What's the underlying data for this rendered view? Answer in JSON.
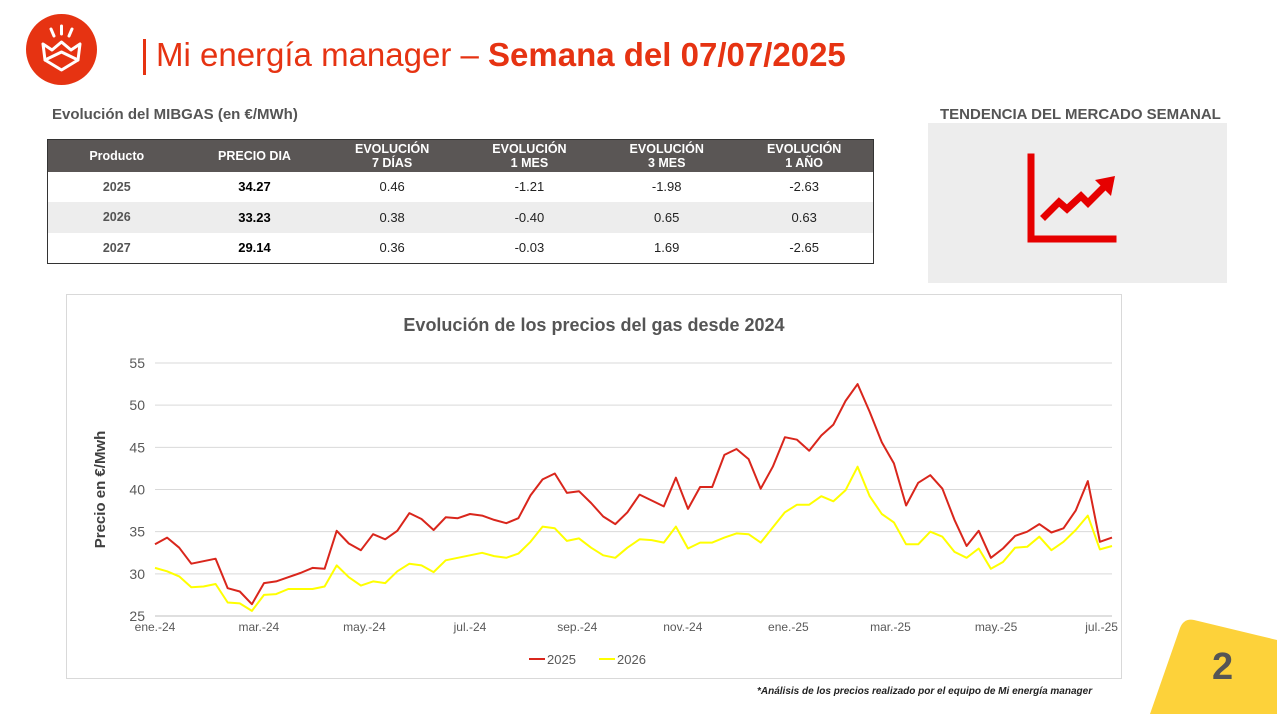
{
  "header": {
    "title_light": "Mi energía manager",
    "title_dash": "–",
    "title_bold": "Semana del 07/07/2025"
  },
  "table": {
    "title": "Evolución del MIBGAS (en €/MWh)",
    "headers": [
      [
        "Producto"
      ],
      [
        "PRECIO DIA"
      ],
      [
        "EVOLUCIÓN",
        "7 DÍAS"
      ],
      [
        "EVOLUCIÓN",
        "1 MES"
      ],
      [
        "EVOLUCIÓN",
        "3 MES"
      ],
      [
        "EVOLUCIÓN",
        "1 AÑO"
      ]
    ],
    "rows": [
      [
        "2025",
        "34.27",
        "0.46",
        "-1.21",
        "-1.98",
        "-2.63"
      ],
      [
        "2026",
        "33.23",
        "0.38",
        "-0.40",
        "0.65",
        "0.63"
      ],
      [
        "2027",
        "29.14",
        "0.36",
        "-0.03",
        "1.69",
        "-2.65"
      ]
    ]
  },
  "trend": {
    "title": "TENDENCIA DEL MERCADO SEMANAL",
    "icon": "rising-trend-chart-icon",
    "color": "#e60000"
  },
  "chart_data": {
    "type": "line",
    "title": "Evolución de los precios del gas desde 2024",
    "xlabel": "",
    "ylabel": "Precio en €/Mwh",
    "ylim": [
      25,
      55
    ],
    "yticks": [
      25,
      30,
      35,
      40,
      45,
      50,
      55
    ],
    "x_tick_labels": [
      "ene.-24",
      "mar.-24",
      "may.-24",
      "jul.-24",
      "sep.-24",
      "nov.-24",
      "ene.-25",
      "mar.-25",
      "may.-25",
      "jul.-25"
    ],
    "x_start": "2024-01-01",
    "x_end": "2025-07-07",
    "grid": "horizontal",
    "legend_position": "bottom",
    "series": [
      {
        "name": "2025",
        "color": "#d9261c",
        "values": [
          33.5,
          34.3,
          33.1,
          31.2,
          31.5,
          31.8,
          28.3,
          27.9,
          26.4,
          28.9,
          29.1,
          29.6,
          30.1,
          30.7,
          30.6,
          35.1,
          33.6,
          32.8,
          34.7,
          34.1,
          35.1,
          37.2,
          36.5,
          35.2,
          36.7,
          36.6,
          37.1,
          36.9,
          36.4,
          36.0,
          36.6,
          39.3,
          41.2,
          41.9,
          39.6,
          39.8,
          38.4,
          36.8,
          35.9,
          37.3,
          39.4,
          38.7,
          38.0,
          41.4,
          37.7,
          40.3,
          40.3,
          44.1,
          44.8,
          43.6,
          40.1,
          42.7,
          46.2,
          45.9,
          44.6,
          46.4,
          47.7,
          50.5,
          52.5,
          49.2,
          45.6,
          43.1,
          38.1,
          40.8,
          41.7,
          40.1,
          36.4,
          33.3,
          35.1,
          31.9,
          33.0,
          34.5,
          35.0,
          35.9,
          34.9,
          35.4,
          37.5,
          41.0,
          33.8,
          34.3
        ]
      },
      {
        "name": "2026",
        "color": "#ffff00",
        "values": [
          30.7,
          30.3,
          29.7,
          28.4,
          28.5,
          28.8,
          26.6,
          26.5,
          25.6,
          27.5,
          27.6,
          28.2,
          28.2,
          28.2,
          28.5,
          31.0,
          29.6,
          28.6,
          29.1,
          28.9,
          30.3,
          31.2,
          31.0,
          30.2,
          31.6,
          31.9,
          32.2,
          32.5,
          32.1,
          31.9,
          32.4,
          33.8,
          35.6,
          35.4,
          33.9,
          34.2,
          33.1,
          32.2,
          31.9,
          33.1,
          34.1,
          34.0,
          33.7,
          35.6,
          33.0,
          33.7,
          33.7,
          34.3,
          34.8,
          34.7,
          33.7,
          35.5,
          37.3,
          38.2,
          38.2,
          39.2,
          38.6,
          39.9,
          42.7,
          39.2,
          37.1,
          36.1,
          33.5,
          33.5,
          35.0,
          34.4,
          32.6,
          31.9,
          33.0,
          30.6,
          31.4,
          33.1,
          33.2,
          34.4,
          32.8,
          33.8,
          35.2,
          36.9,
          32.9,
          33.3
        ]
      }
    ]
  },
  "footnote": "*Análisis de los precios realizado por el equipo de Mi energía manager",
  "page_number": "2",
  "colors": {
    "brand_red": "#e63312",
    "table_header": "#5a5655",
    "corner_yellow": "#fdd23a"
  }
}
